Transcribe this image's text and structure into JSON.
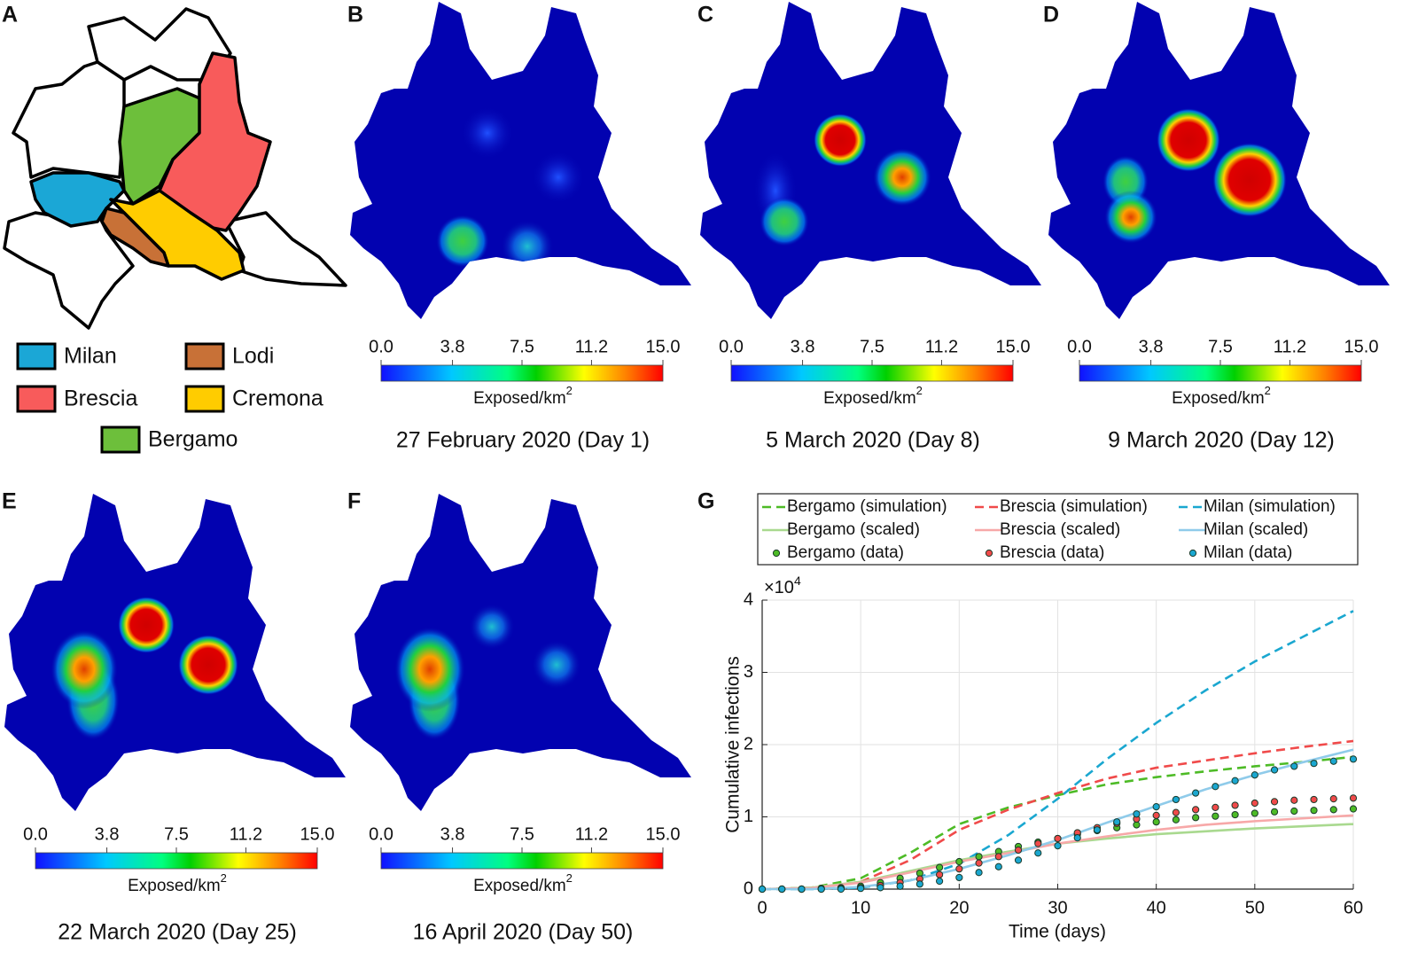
{
  "panel_letters": [
    "A",
    "B",
    "C",
    "D",
    "E",
    "F",
    "G"
  ],
  "region_legend": [
    {
      "name": "Milan",
      "color": "#1ba7d6"
    },
    {
      "name": "Lodi",
      "color": "#c87137"
    },
    {
      "name": "Brescia",
      "color": "#f85b5b"
    },
    {
      "name": "Cremona",
      "color": "#ffcc00"
    },
    {
      "name": "Bergamo",
      "color": "#6dbf3b"
    }
  ],
  "colorbar": {
    "label": "Exposed/km",
    "label_sup": "2",
    "lim": [
      0,
      15
    ],
    "ticks": [
      {
        "value": 0,
        "label": "0.0"
      },
      3.8,
      7.5,
      11.2,
      {
        "value": 15,
        "label": "15.0"
      }
    ]
  },
  "maps": [
    {
      "caption": "27 February 2020 (Day 1)"
    },
    {
      "caption": "5 March 2020 (Day 8)"
    },
    {
      "caption": "9 March 2020 (Day 12)"
    },
    {
      "caption": "22 March 2020 (Day 25)"
    },
    {
      "caption": "16 April 2020 (Day 50)"
    }
  ],
  "chart_data": {
    "type": "line",
    "xlabel": "Time (days)",
    "ylabel": "Cumulative infections",
    "y_exponent": "×10",
    "y_exponent_sup": "4",
    "xlim": [
      0,
      60
    ],
    "xticks": [
      0,
      10,
      20,
      30,
      40,
      50,
      60
    ],
    "ylim": [
      0,
      40000
    ],
    "yticks": [
      0,
      {
        "value": 10000,
        "label": "1"
      },
      {
        "value": 20000,
        "label": "2"
      },
      {
        "value": 30000,
        "label": "3"
      },
      {
        "value": 40000,
        "label": "4"
      }
    ],
    "grid": true,
    "x": [
      0,
      5,
      10,
      15,
      20,
      25,
      30,
      35,
      40,
      45,
      50,
      55,
      60
    ],
    "series": [
      {
        "name": "Bergamo (simulation)",
        "color": "#4dbb26",
        "style": "dashed",
        "values": [
          0,
          200,
          1500,
          5000,
          9000,
          11300,
          13000,
          14500,
          15500,
          16300,
          17000,
          17600,
          18300
        ]
      },
      {
        "name": "Brescia (simulation)",
        "color": "#f04a4a",
        "style": "dashed",
        "values": [
          0,
          100,
          1000,
          4000,
          8200,
          11000,
          13300,
          15300,
          16800,
          17800,
          18800,
          19700,
          20500
        ]
      },
      {
        "name": "Milan (simulation)",
        "color": "#1aa7d0",
        "style": "dashed",
        "values": [
          0,
          0,
          200,
          1200,
          3500,
          7500,
          12500,
          18000,
          23000,
          27500,
          31500,
          35000,
          38500
        ]
      },
      {
        "name": "Bergamo (scaled)",
        "color": "#a9d98f",
        "style": "solid",
        "values": [
          0,
          200,
          1000,
          2500,
          4000,
          5200,
          6300,
          7000,
          7600,
          8000,
          8400,
          8700,
          9000
        ]
      },
      {
        "name": "Brescia (scaled)",
        "color": "#f7a8a8",
        "style": "solid",
        "values": [
          0,
          150,
          900,
          2300,
          3800,
          5000,
          6300,
          7300,
          8200,
          8900,
          9400,
          9800,
          10200
        ]
      },
      {
        "name": "Milan (scaled)",
        "color": "#8fcbea",
        "style": "solid",
        "values": [
          0,
          0,
          300,
          1200,
          2800,
          4700,
          6800,
          9200,
          11500,
          13800,
          15800,
          17600,
          19300
        ]
      },
      {
        "name": "Bergamo (data)",
        "color": "#4dbb26",
        "style": "markers",
        "x": [
          0,
          2,
          4,
          6,
          8,
          10,
          12,
          14,
          16,
          18,
          20,
          22,
          24,
          26,
          28,
          30,
          32,
          34,
          36,
          38,
          40,
          42,
          44,
          46,
          48,
          50,
          52,
          54,
          56,
          58,
          60
        ],
        "values": [
          0,
          0,
          0,
          100,
          200,
          400,
          900,
          1500,
          2200,
          3000,
          3800,
          4500,
          5200,
          5900,
          6500,
          7000,
          7600,
          8100,
          8500,
          8900,
          9300,
          9600,
          9900,
          10100,
          10300,
          10500,
          10700,
          10800,
          10900,
          11000,
          11100
        ]
      },
      {
        "name": "Brescia (data)",
        "color": "#f04a4a",
        "style": "markers",
        "x": [
          0,
          2,
          4,
          6,
          8,
          10,
          12,
          14,
          16,
          18,
          20,
          22,
          24,
          26,
          28,
          30,
          32,
          34,
          36,
          38,
          40,
          42,
          44,
          46,
          48,
          50,
          52,
          54,
          56,
          58,
          60
        ],
        "values": [
          0,
          0,
          0,
          0,
          100,
          200,
          500,
          900,
          1400,
          2000,
          2800,
          3600,
          4500,
          5400,
          6300,
          7000,
          7800,
          8500,
          9100,
          9700,
          10200,
          10600,
          11000,
          11300,
          11600,
          11900,
          12100,
          12300,
          12400,
          12500,
          12600
        ]
      },
      {
        "name": "Milan (data)",
        "color": "#1aa7d0",
        "style": "markers",
        "x": [
          0,
          2,
          4,
          6,
          8,
          10,
          12,
          14,
          16,
          18,
          20,
          22,
          24,
          26,
          28,
          30,
          32,
          34,
          36,
          38,
          40,
          42,
          44,
          46,
          48,
          50,
          52,
          54,
          56,
          58,
          60
        ],
        "values": [
          0,
          0,
          0,
          0,
          0,
          100,
          200,
          400,
          700,
          1100,
          1600,
          2300,
          3100,
          4000,
          5000,
          6000,
          7100,
          8200,
          9300,
          10400,
          11400,
          12400,
          13300,
          14200,
          15000,
          15800,
          16500,
          17000,
          17400,
          17700,
          18000
        ]
      }
    ]
  }
}
